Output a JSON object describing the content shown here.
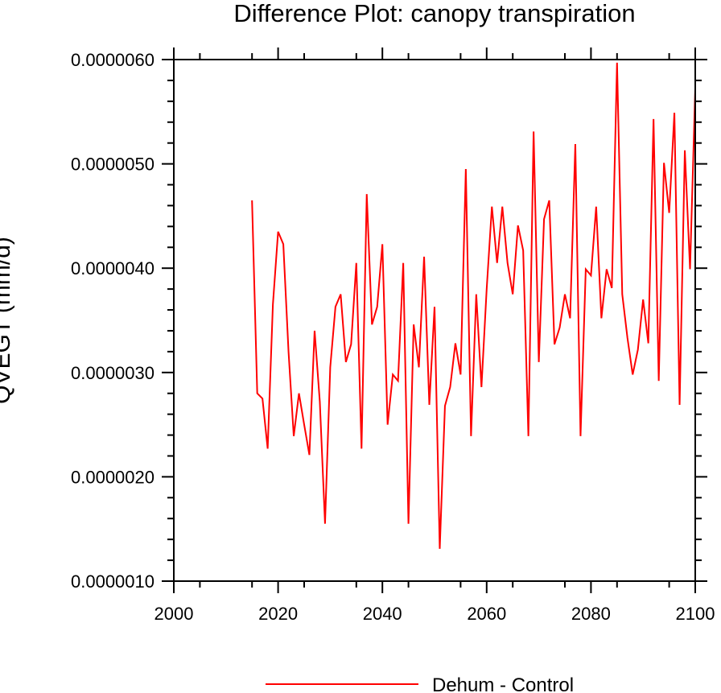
{
  "chart_data": {
    "type": "line",
    "title": "Difference Plot: canopy transpiration",
    "xlabel": "",
    "ylabel": "QVEGT  (mm/d)",
    "xlim": [
      2000,
      2100
    ],
    "ylim": [
      1e-06,
      6e-06
    ],
    "x_ticks": [
      2000,
      2020,
      2040,
      2060,
      2080,
      2100
    ],
    "x_tick_labels": [
      "2000",
      "2020",
      "2040",
      "2060",
      "2080",
      "2100"
    ],
    "y_ticks": [
      1e-06,
      2e-06,
      3e-06,
      4e-06,
      5e-06,
      6e-06
    ],
    "y_tick_labels": [
      "0.0000010",
      "0.0000020",
      "0.0000030",
      "0.0000040",
      "0.0000050",
      "0.0000060"
    ],
    "grid": false,
    "legend_position": "bottom-center",
    "series": [
      {
        "name": "Dehum - Control",
        "color": "#ff0000",
        "x": [
          2015,
          2016,
          2017,
          2018,
          2019,
          2020,
          2021,
          2022,
          2023,
          2024,
          2025,
          2026,
          2027,
          2028,
          2029,
          2030,
          2031,
          2032,
          2033,
          2034,
          2035,
          2036,
          2037,
          2038,
          2039,
          2040,
          2041,
          2042,
          2043,
          2044,
          2045,
          2046,
          2047,
          2048,
          2049,
          2050,
          2051,
          2052,
          2053,
          2054,
          2055,
          2056,
          2057,
          2058,
          2059,
          2060,
          2061,
          2062,
          2063,
          2064,
          2065,
          2066,
          2067,
          2068,
          2069,
          2070,
          2071,
          2072,
          2073,
          2074,
          2075,
          2076,
          2077,
          2078,
          2079,
          2080,
          2081,
          2082,
          2083,
          2084,
          2085,
          2086,
          2087,
          2088,
          2089,
          2090,
          2091,
          2092,
          2093,
          2094,
          2095,
          2096,
          2097,
          2098,
          2099,
          2100
        ],
        "values": [
          4.65e-06,
          2.8e-06,
          2.75e-06,
          2.27e-06,
          3.65e-06,
          4.35e-06,
          4.23e-06,
          3.2e-06,
          2.39e-06,
          2.8e-06,
          2.5e-06,
          2.21e-06,
          3.4e-06,
          2.72e-06,
          1.55e-06,
          3.05e-06,
          3.63e-06,
          3.75e-06,
          3.1e-06,
          3.27e-06,
          4.05e-06,
          2.27e-06,
          4.71e-06,
          3.46e-06,
          3.63e-06,
          4.23e-06,
          2.5e-06,
          2.98e-06,
          2.92e-06,
          4.05e-06,
          1.55e-06,
          3.46e-06,
          3.05e-06,
          4.11e-06,
          2.69e-06,
          3.63e-06,
          1.31e-06,
          2.68e-06,
          2.86e-06,
          3.28e-06,
          2.98e-06,
          4.95e-06,
          2.39e-06,
          3.75e-06,
          2.86e-06,
          3.8e-06,
          4.59e-06,
          4.05e-06,
          4.59e-06,
          4.05e-06,
          3.75e-06,
          4.41e-06,
          4.17e-06,
          2.39e-06,
          5.31e-06,
          3.1e-06,
          4.47e-06,
          4.65e-06,
          3.27e-06,
          3.43e-06,
          3.75e-06,
          3.52e-06,
          5.19e-06,
          2.39e-06,
          3.99e-06,
          3.93e-06,
          4.59e-06,
          3.52e-06,
          3.99e-06,
          3.81e-06,
          5.97e-06,
          3.75e-06,
          3.33e-06,
          2.98e-06,
          3.22e-06,
          3.7e-06,
          3.28e-06,
          5.43e-06,
          2.92e-06,
          5.01e-06,
          4.53e-06,
          5.49e-06,
          2.69e-06,
          5.13e-06,
          3.99e-06,
          5.72e-06
        ]
      }
    ]
  }
}
